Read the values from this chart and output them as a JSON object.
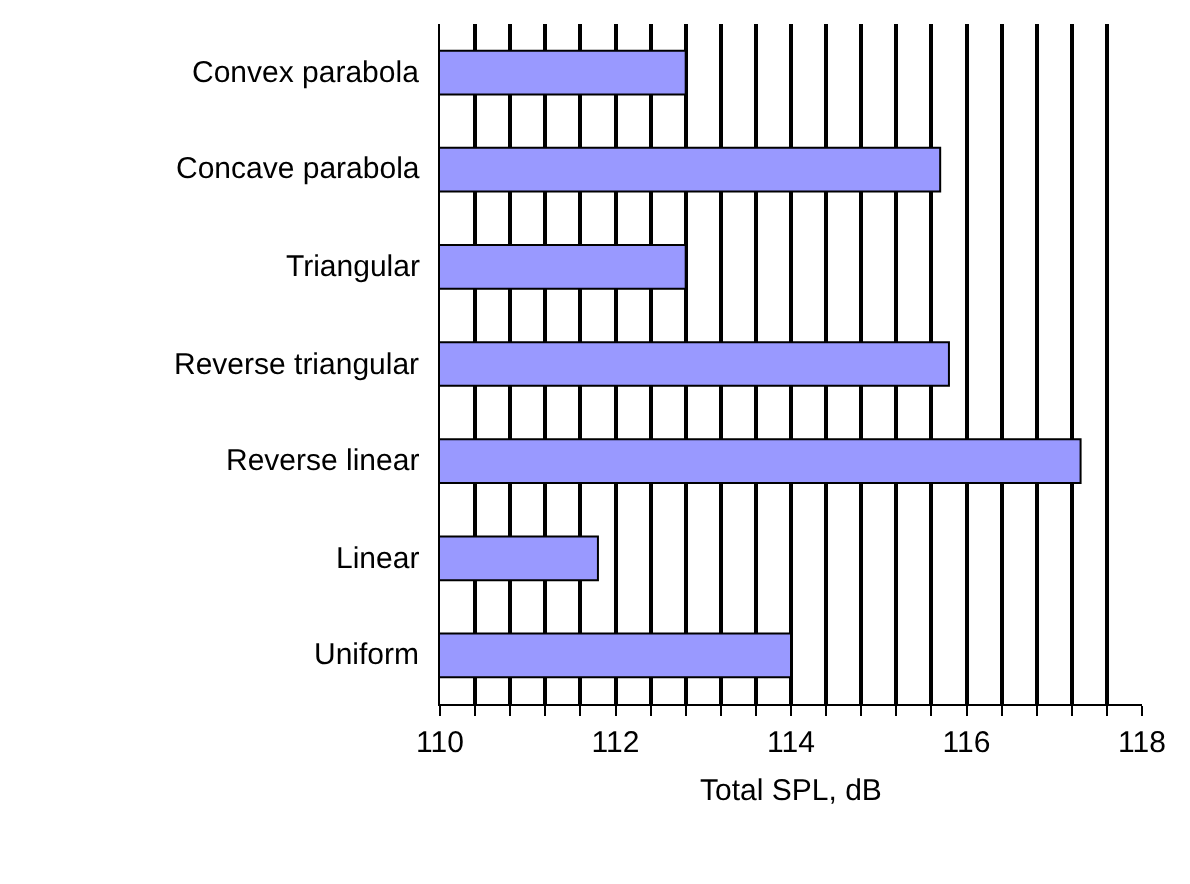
{
  "chart_data": {
    "type": "bar",
    "orientation": "horizontal",
    "xlabel": "Total SPL, dB",
    "categories": [
      "Convex parabola",
      "Concave parabola",
      "Triangular",
      "Reverse triangular",
      "Reverse linear",
      "Linear",
      "Uniform"
    ],
    "values": [
      112.8,
      115.7,
      112.8,
      115.8,
      117.3,
      111.8,
      114.0
    ],
    "color": "#9999ff",
    "xlim": [
      110,
      118
    ],
    "xticks": [
      110,
      {
        "value": 110.4,
        "label": null
      },
      {
        "value": 110.8,
        "label": null
      },
      {
        "value": 111.2,
        "label": null
      },
      {
        "value": 111.6,
        "label": null
      },
      112,
      {
        "value": 112.4,
        "label": null
      },
      {
        "value": 112.8,
        "label": null
      },
      {
        "value": 113.2,
        "label": null
      },
      {
        "value": 113.6,
        "label": null
      },
      114,
      {
        "value": 114.4,
        "label": null
      },
      {
        "value": 114.8,
        "label": null
      },
      {
        "value": 115.2,
        "label": null
      },
      {
        "value": 115.6,
        "label": null
      },
      116,
      {
        "value": 116.4,
        "label": null
      },
      {
        "value": 116.8,
        "label": null
      },
      {
        "value": 117.2,
        "label": null
      },
      {
        "value": 117.6,
        "label": null
      },
      118
    ],
    "grid": "x"
  }
}
